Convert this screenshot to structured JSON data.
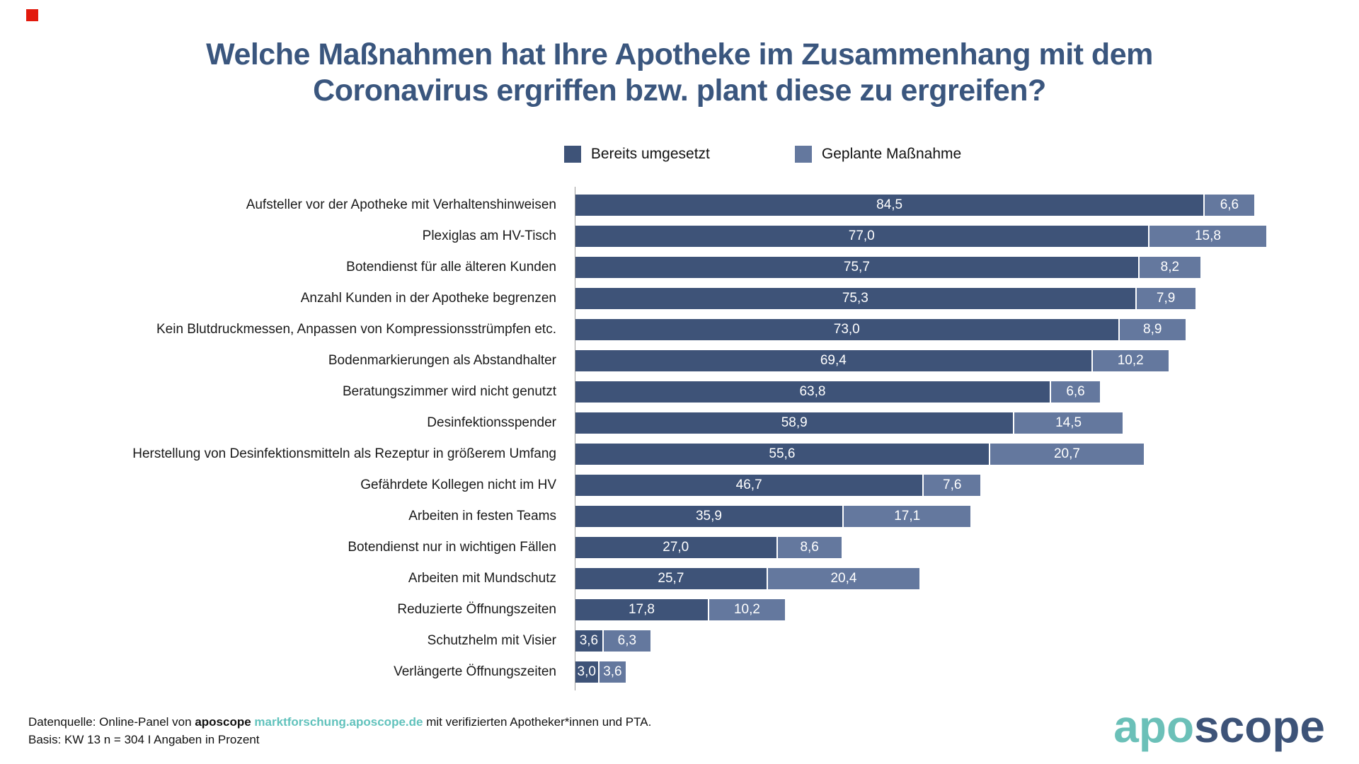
{
  "marker": {
    "color": "#e2190c"
  },
  "title": {
    "line1": "Welche Maßnahmen hat Ihre Apotheke im Zusammenhang mit dem",
    "line2": "Coronavirus ergriffen bzw. plant diese zu ergreifen?",
    "color": "#3a567e"
  },
  "legend": {
    "items": [
      {
        "label": "Bereits umgesetzt",
        "color": "#3e5378"
      },
      {
        "label": "Geplante Maßnahme",
        "color": "#64789e"
      }
    ]
  },
  "chart_data": {
    "type": "bar",
    "orientation": "horizontal",
    "stacked": true,
    "unit": "percent",
    "decimal_separator": ",",
    "xlim": [
      0,
      100
    ],
    "grid": false,
    "legend_position": "top",
    "categories": [
      "Aufsteller vor der Apotheke mit Verhaltenshinweisen",
      "Plexiglas am HV-Tisch",
      "Botendienst für alle älteren Kunden",
      "Anzahl Kunden in der Apotheke begrenzen",
      "Kein Blutdruckmessen, Anpassen von Kompressionsstrümpfen etc.",
      "Bodenmarkierungen als Abstandhalter",
      "Beratungszimmer wird nicht genutzt",
      "Desinfektionsspender",
      "Herstellung von Desinfektionsmitteln als Rezeptur in größerem Umfang",
      "Gefährdete Kollegen nicht im HV",
      "Arbeiten in festen Teams",
      "Botendienst nur in wichtigen Fällen",
      "Arbeiten mit Mundschutz",
      "Reduzierte Öffnungszeiten",
      "Schutzhelm mit Visier",
      "Verlängerte Öffnungszeiten"
    ],
    "series": [
      {
        "name": "Bereits umgesetzt",
        "color": "#3e5378",
        "values": [
          84.5,
          77.0,
          75.7,
          75.3,
          73.0,
          69.4,
          63.8,
          58.9,
          55.6,
          46.7,
          35.9,
          27.0,
          25.7,
          17.8,
          3.6,
          3.0
        ]
      },
      {
        "name": "Geplante Maßnahme",
        "color": "#64789e",
        "values": [
          6.6,
          15.8,
          8.2,
          7.9,
          8.9,
          10.2,
          6.6,
          14.5,
          20.7,
          7.6,
          17.1,
          8.6,
          20.4,
          10.2,
          6.3,
          3.6
        ]
      }
    ]
  },
  "footer": {
    "line1_prefix": "Datenquelle: Online-Panel von ",
    "brand": "aposcope",
    "link": "marktforschung.aposcope.de",
    "line1_suffix": " mit verifizierten Apotheker*innen und PTA.",
    "line2": "Basis: KW 13 n = 304 I Angaben in Prozent",
    "link_color": "#61c2bc"
  },
  "logo": {
    "part1": "apo",
    "part2": "scope",
    "part1_color": "#6bc0b8",
    "part2_color": "#3d5378"
  }
}
